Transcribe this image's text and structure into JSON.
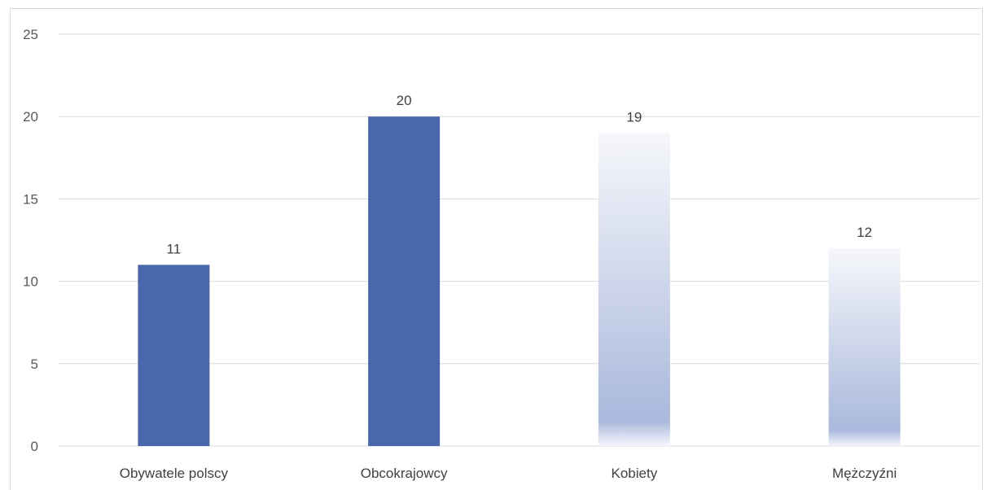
{
  "chart_data": {
    "type": "bar",
    "categories": [
      "Obywatele polscy",
      "Obcokrajowcy",
      "Kobiety",
      "Mężczyźni"
    ],
    "values": [
      11,
      20,
      19,
      12
    ],
    "data_labels": [
      "11",
      "20",
      "19",
      "12"
    ],
    "ylim": [
      0,
      25
    ],
    "yticks": [
      "0",
      "5",
      "10",
      "15",
      "20",
      "25"
    ],
    "grid": true,
    "legend": "none",
    "colors": {
      "solid_bar": "#4a67ad",
      "gradient_bottom": "#a9b8dc",
      "gradient_top": "#f6f7fb",
      "grid": "#d9d9d9"
    },
    "bar_styles": [
      "solid",
      "solid",
      "gradient",
      "gradient"
    ]
  }
}
